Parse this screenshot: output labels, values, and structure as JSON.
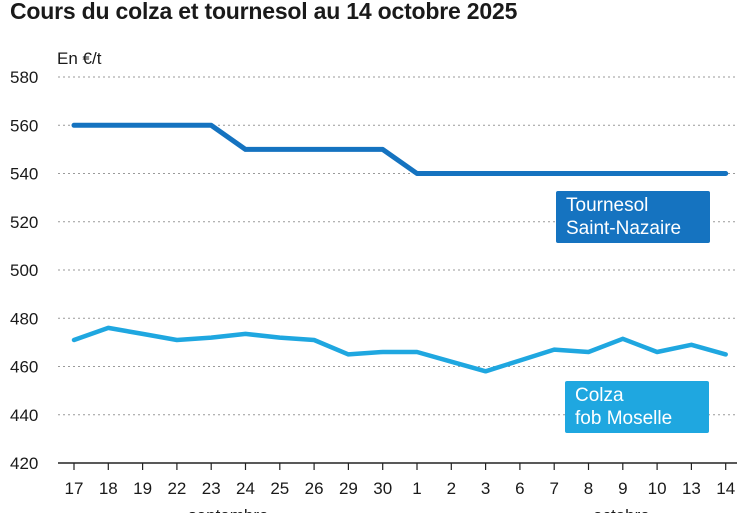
{
  "chart_data": {
    "type": "line",
    "title": "Cours du colza et tournesol au 14 octobre 2025",
    "ylabel": "En €/t",
    "ylim": [
      420,
      580
    ],
    "yticks": [
      420,
      440,
      460,
      480,
      500,
      520,
      540,
      560,
      580
    ],
    "grid": "horizontal dotted",
    "categories": [
      "17",
      "18",
      "19",
      "22",
      "23",
      "24",
      "25",
      "26",
      "29",
      "30",
      "1",
      "2",
      "3",
      "6",
      "7",
      "8",
      "9",
      "10",
      "13",
      "14"
    ],
    "month_labels": [
      "septembre",
      "octobre"
    ],
    "series": [
      {
        "name_lines": [
          "Tournesol",
          "Saint-Nazaire"
        ],
        "color": "#1573c0",
        "values": [
          560,
          560,
          560,
          560,
          560,
          550,
          550,
          550,
          550,
          550,
          540,
          540,
          540,
          540,
          540,
          540,
          540,
          540,
          540,
          540
        ]
      },
      {
        "name_lines": [
          "Colza",
          "fob Moselle"
        ],
        "color": "#1fa7e0",
        "values": [
          471,
          476,
          473.5,
          471,
          472,
          473.5,
          472,
          471,
          465,
          466,
          466,
          462,
          458,
          462.5,
          467,
          466,
          471.5,
          466,
          469,
          465
        ]
      }
    ]
  }
}
